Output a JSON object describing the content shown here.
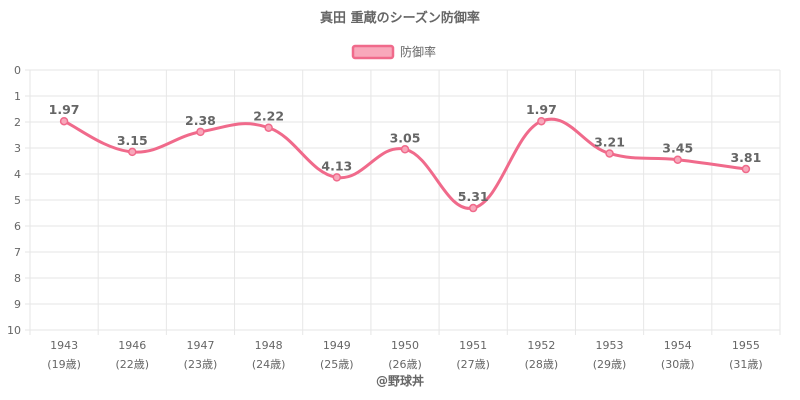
{
  "credit": "@野球丼",
  "colors": {
    "line": "#f06a8b",
    "legend_fill": "#f8a8bb",
    "grid": "#e6e6e6",
    "text": "#666666"
  },
  "chart_data": {
    "type": "line",
    "title": "真田 重蔵のシーズン防御率",
    "legend_position": "top",
    "series": [
      {
        "name": "防御率",
        "values": [
          1.97,
          3.15,
          2.38,
          2.22,
          4.13,
          3.05,
          5.31,
          1.97,
          3.21,
          3.45,
          3.81
        ]
      }
    ],
    "categories": [
      "1943",
      "1946",
      "1947",
      "1948",
      "1949",
      "1950",
      "1951",
      "1952",
      "1953",
      "1954",
      "1955"
    ],
    "category_sublabels": [
      "(19歳)",
      "(22歳)",
      "(23歳)",
      "(24歳)",
      "(25歳)",
      "(26歳)",
      "(27歳)",
      "(28歳)",
      "(29歳)",
      "(30歳)",
      "(31歳)"
    ],
    "data_labels": [
      "1.97",
      "3.15",
      "2.38",
      "2.22",
      "4.13",
      "3.05",
      "5.31",
      "1.97",
      "3.21",
      "3.45",
      "3.81"
    ],
    "y_ticks": [
      "0",
      "1",
      "2",
      "3",
      "4",
      "5",
      "6",
      "7",
      "8",
      "9",
      "10"
    ],
    "ylim": [
      0,
      10
    ],
    "y_reversed": true,
    "grid": true,
    "smooth": true
  }
}
